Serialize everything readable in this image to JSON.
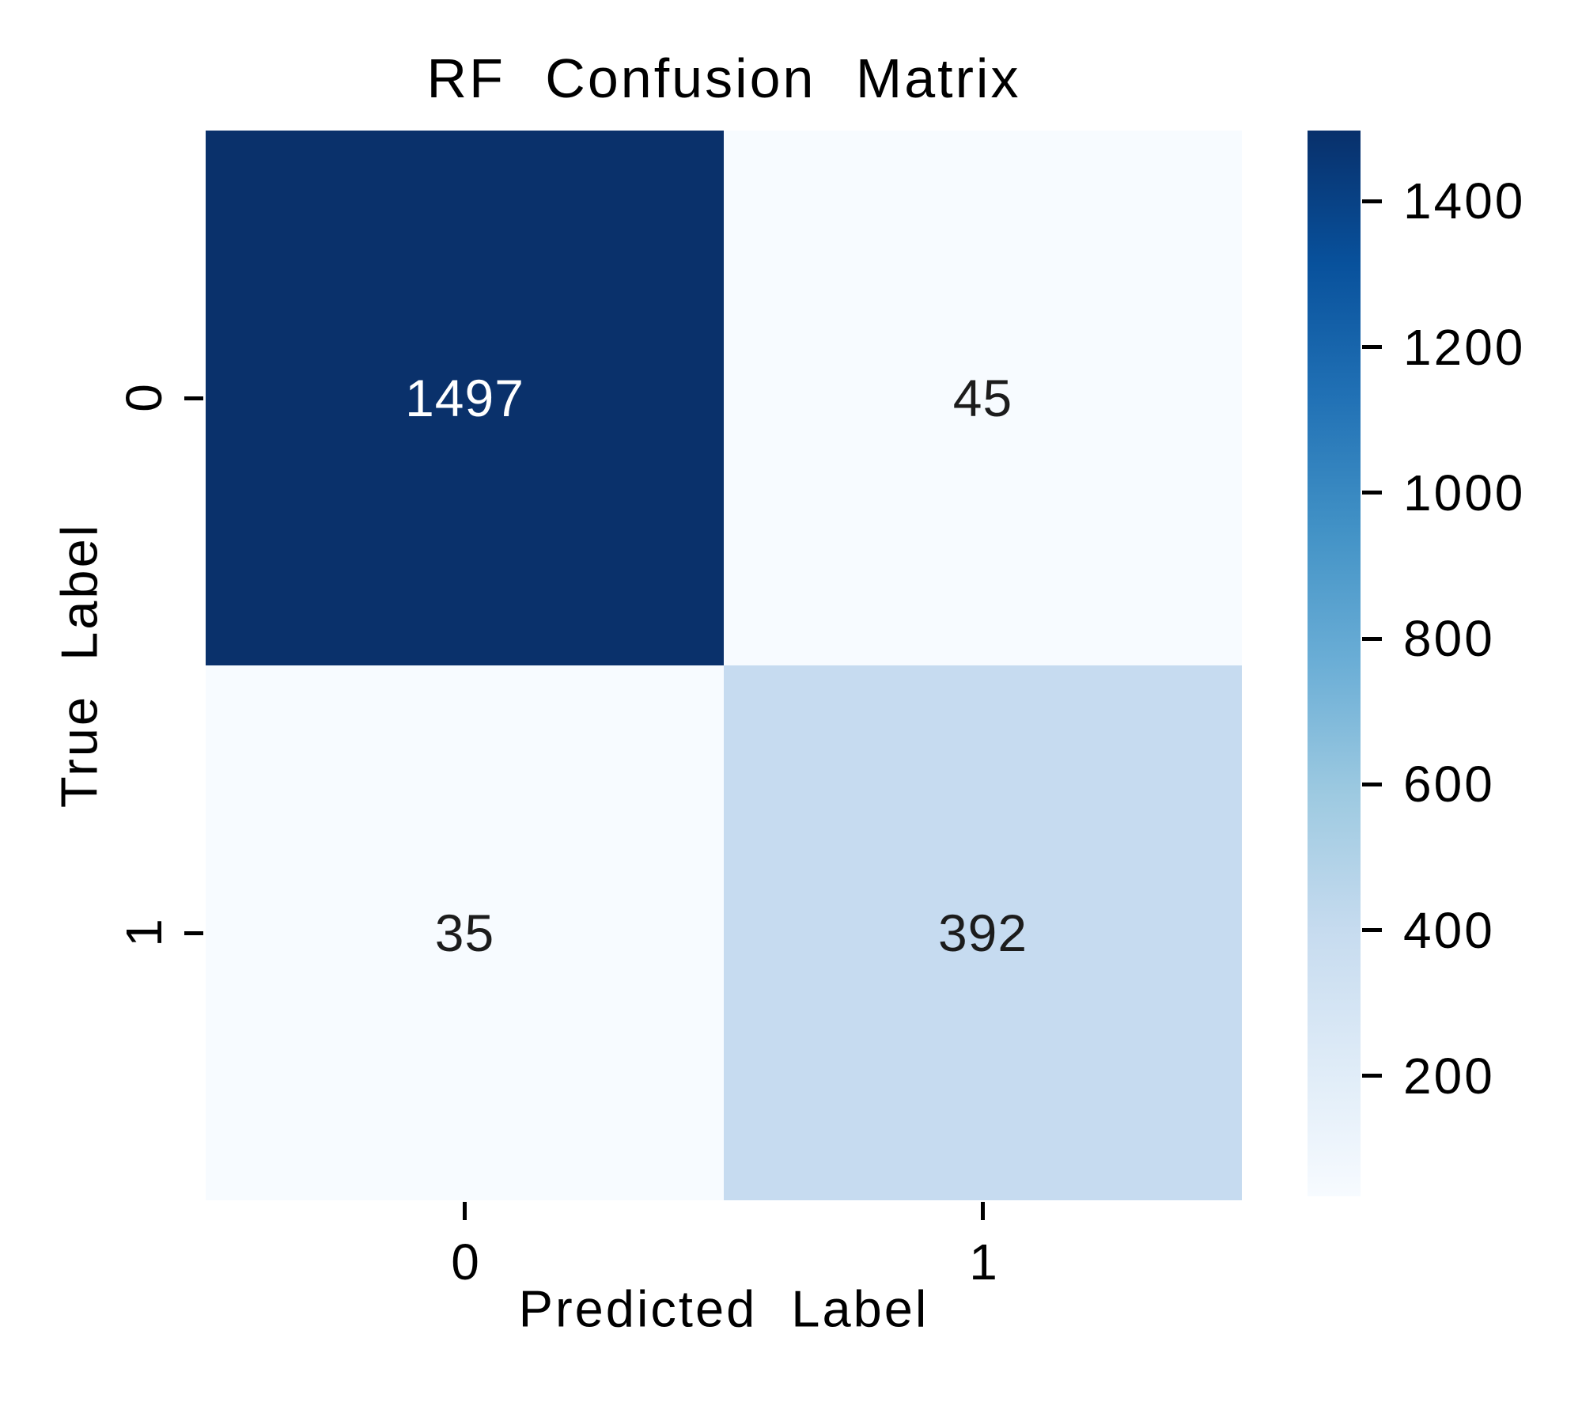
{
  "chart_data": {
    "type": "heatmap",
    "title": "RF Confusion Matrix",
    "xlabel": "Predicted Label",
    "ylabel": "True Label",
    "x_tick_labels": [
      "0",
      "1"
    ],
    "y_tick_labels": [
      "0",
      "1"
    ],
    "rows": [
      {
        "true_label": "0",
        "values": [
          1497,
          45
        ]
      },
      {
        "true_label": "1",
        "values": [
          35,
          392
        ]
      }
    ],
    "vmin": 35,
    "vmax": 1497,
    "colormap": "Blues",
    "grid": "off",
    "cell_colors": [
      [
        "#0a316b",
        "#f7fbff"
      ],
      [
        "#f7fbff",
        "#c6dbf0"
      ]
    ],
    "cell_text_colors": [
      [
        "#ffffff",
        "#1c1c1c"
      ],
      [
        "#1c1c1c",
        "#1c1c1c"
      ]
    ],
    "colorbar": {
      "position": "right",
      "ticks": [
        200,
        400,
        600,
        800,
        1000,
        1200,
        1400
      ],
      "gradient_stops": [
        "#f7fbff",
        "#deebf7",
        "#c6dbef",
        "#9ecae1",
        "#6baed6",
        "#4292c6",
        "#2171b5",
        "#08519c",
        "#08306b"
      ]
    }
  }
}
